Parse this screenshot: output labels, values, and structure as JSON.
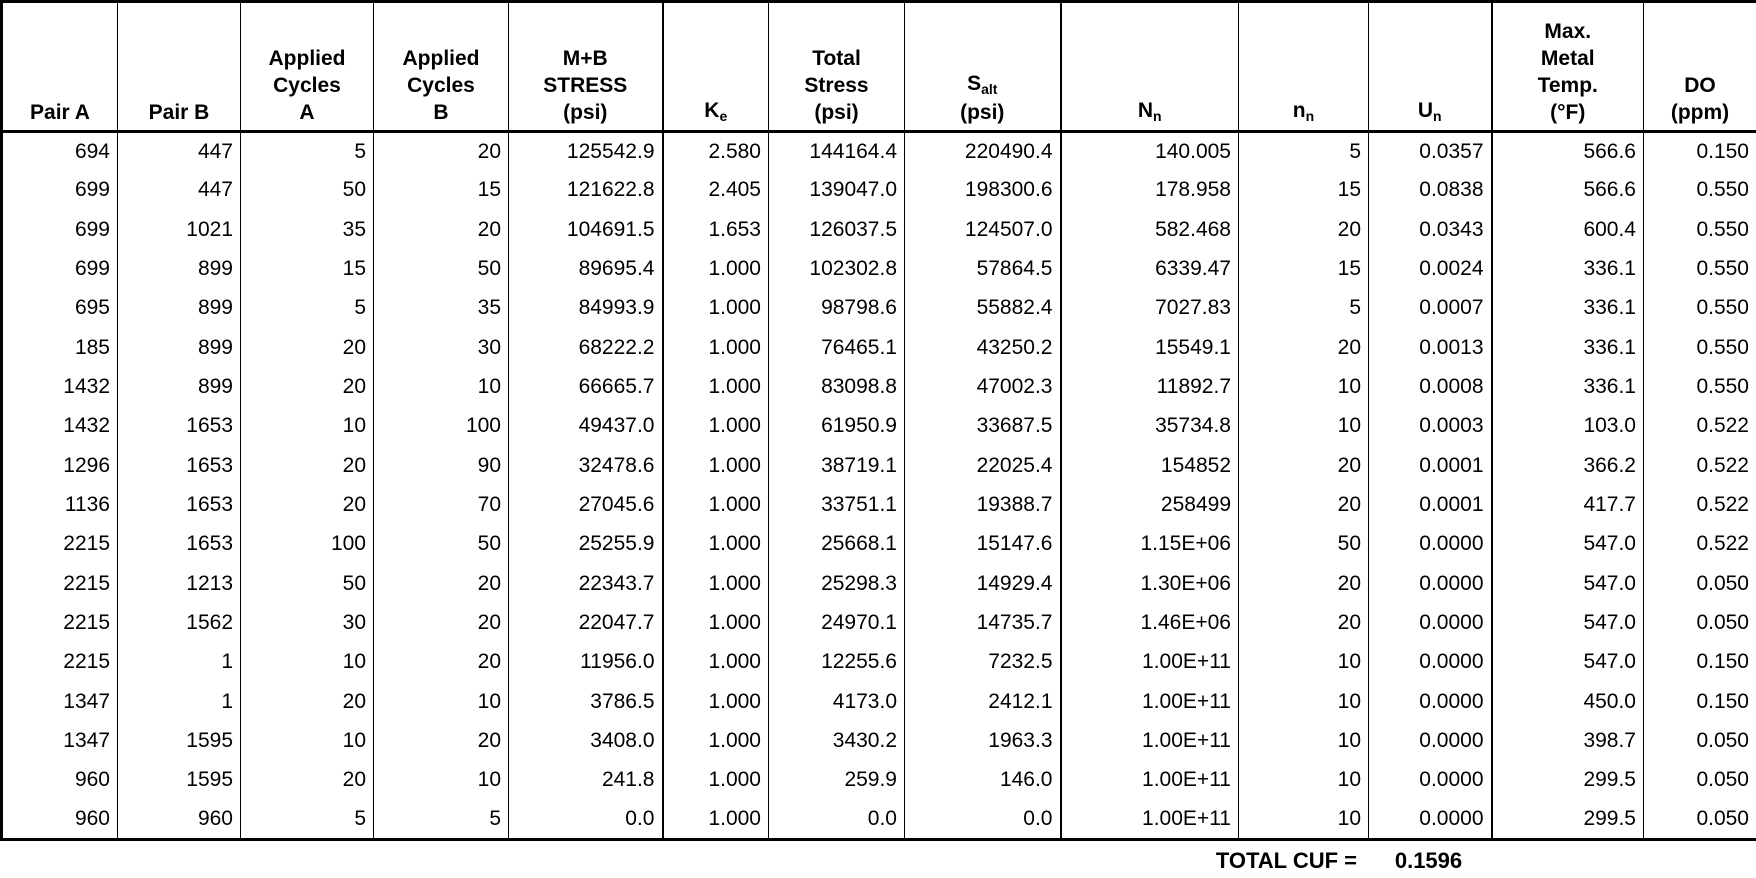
{
  "table": {
    "columns": [
      {
        "id": "pair-a",
        "lines": [
          "Pair A"
        ]
      },
      {
        "id": "pair-b",
        "lines": [
          "Pair B"
        ]
      },
      {
        "id": "applied-cycles-a",
        "lines": [
          "Applied",
          "Cycles",
          "A"
        ]
      },
      {
        "id": "applied-cycles-b",
        "lines": [
          "Applied",
          "Cycles",
          "B"
        ]
      },
      {
        "id": "mb-stress",
        "lines": [
          "M+B",
          "STRESS",
          "(psi)"
        ]
      },
      {
        "id": "ke",
        "lines": [
          {
            "text": "K",
            "sub": "e"
          }
        ]
      },
      {
        "id": "total-stress",
        "lines": [
          "Total",
          "Stress",
          "(psi)"
        ]
      },
      {
        "id": "s-alt",
        "lines": [
          {
            "text": "S",
            "sub": "alt"
          },
          "(psi)"
        ]
      },
      {
        "id": "n-cap",
        "lines": [
          {
            "text": "N",
            "sub": "n"
          }
        ]
      },
      {
        "id": "n-low",
        "lines": [
          {
            "text": "n",
            "sub": "n"
          }
        ]
      },
      {
        "id": "u-n",
        "lines": [
          {
            "text": "U",
            "sub": "n"
          }
        ]
      },
      {
        "id": "max-metal-temp",
        "lines": [
          "Max.",
          "Metal",
          "Temp.",
          "(°F)"
        ]
      },
      {
        "id": "do",
        "lines": [
          "DO",
          "(ppm)"
        ]
      }
    ],
    "rows": [
      [
        "694",
        "447",
        "5",
        "20",
        "125542.9",
        "2.580",
        "144164.4",
        "220490.4",
        "140.005",
        "5",
        "0.0357",
        "566.6",
        "0.150"
      ],
      [
        "699",
        "447",
        "50",
        "15",
        "121622.8",
        "2.405",
        "139047.0",
        "198300.6",
        "178.958",
        "15",
        "0.0838",
        "566.6",
        "0.550"
      ],
      [
        "699",
        "1021",
        "35",
        "20",
        "104691.5",
        "1.653",
        "126037.5",
        "124507.0",
        "582.468",
        "20",
        "0.0343",
        "600.4",
        "0.550"
      ],
      [
        "699",
        "899",
        "15",
        "50",
        "89695.4",
        "1.000",
        "102302.8",
        "57864.5",
        "6339.47",
        "15",
        "0.0024",
        "336.1",
        "0.550"
      ],
      [
        "695",
        "899",
        "5",
        "35",
        "84993.9",
        "1.000",
        "98798.6",
        "55882.4",
        "7027.83",
        "5",
        "0.0007",
        "336.1",
        "0.550"
      ],
      [
        "185",
        "899",
        "20",
        "30",
        "68222.2",
        "1.000",
        "76465.1",
        "43250.2",
        "15549.1",
        "20",
        "0.0013",
        "336.1",
        "0.550"
      ],
      [
        "1432",
        "899",
        "20",
        "10",
        "66665.7",
        "1.000",
        "83098.8",
        "47002.3",
        "11892.7",
        "10",
        "0.0008",
        "336.1",
        "0.550"
      ],
      [
        "1432",
        "1653",
        "10",
        "100",
        "49437.0",
        "1.000",
        "61950.9",
        "33687.5",
        "35734.8",
        "10",
        "0.0003",
        "103.0",
        "0.522"
      ],
      [
        "1296",
        "1653",
        "20",
        "90",
        "32478.6",
        "1.000",
        "38719.1",
        "22025.4",
        "154852",
        "20",
        "0.0001",
        "366.2",
        "0.522"
      ],
      [
        "1136",
        "1653",
        "20",
        "70",
        "27045.6",
        "1.000",
        "33751.1",
        "19388.7",
        "258499",
        "20",
        "0.0001",
        "417.7",
        "0.522"
      ],
      [
        "2215",
        "1653",
        "100",
        "50",
        "25255.9",
        "1.000",
        "25668.1",
        "15147.6",
        "1.15E+06",
        "50",
        "0.0000",
        "547.0",
        "0.522"
      ],
      [
        "2215",
        "1213",
        "50",
        "20",
        "22343.7",
        "1.000",
        "25298.3",
        "14929.4",
        "1.30E+06",
        "20",
        "0.0000",
        "547.0",
        "0.050"
      ],
      [
        "2215",
        "1562",
        "30",
        "20",
        "22047.7",
        "1.000",
        "24970.1",
        "14735.7",
        "1.46E+06",
        "20",
        "0.0000",
        "547.0",
        "0.050"
      ],
      [
        "2215",
        "1",
        "10",
        "20",
        "11956.0",
        "1.000",
        "12255.6",
        "7232.5",
        "1.00E+11",
        "10",
        "0.0000",
        "547.0",
        "0.150"
      ],
      [
        "1347",
        "1",
        "20",
        "10",
        "3786.5",
        "1.000",
        "4173.0",
        "2412.1",
        "1.00E+11",
        "10",
        "0.0000",
        "450.0",
        "0.150"
      ],
      [
        "1347",
        "1595",
        "10",
        "20",
        "3408.0",
        "1.000",
        "3430.2",
        "1963.3",
        "1.00E+11",
        "10",
        "0.0000",
        "398.7",
        "0.050"
      ],
      [
        "960",
        "1595",
        "20",
        "10",
        "241.8",
        "1.000",
        "259.9",
        "146.0",
        "1.00E+11",
        "10",
        "0.0000",
        "299.5",
        "0.050"
      ],
      [
        "960",
        "960",
        "5",
        "5",
        "0.0",
        "1.000",
        "0.0",
        "0.0",
        "1.00E+11",
        "10",
        "0.0000",
        "299.5",
        "0.050"
      ]
    ]
  },
  "footer": {
    "label": "TOTAL CUF =",
    "value": "0.1596"
  },
  "colors": {
    "border": "#000000",
    "text": "#000000",
    "background": "#ffffff"
  }
}
